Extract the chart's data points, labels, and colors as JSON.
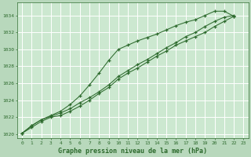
{
  "background_color": "#b8d8bc",
  "plot_bg_color": "#cce8d0",
  "grid_color": "#a0c8a8",
  "line_color": "#2d6a2d",
  "title": "Graphe pression niveau de la mer (hPa)",
  "xlim": [
    -0.5,
    23.5
  ],
  "ylim": [
    1019.5,
    1035.5
  ],
  "yticks": [
    1020,
    1022,
    1024,
    1026,
    1028,
    1030,
    1032,
    1034
  ],
  "xticks": [
    0,
    1,
    2,
    3,
    4,
    5,
    6,
    7,
    8,
    9,
    10,
    11,
    12,
    13,
    14,
    15,
    16,
    17,
    18,
    19,
    20,
    21,
    22,
    23
  ],
  "series1_x": [
    0,
    1,
    2,
    3,
    4,
    5,
    6,
    7,
    8,
    9,
    10,
    11,
    12,
    13,
    14,
    15,
    16,
    17,
    18,
    19,
    20,
    21,
    22
  ],
  "series1": [
    1020.1,
    1020.8,
    1021.5,
    1022.0,
    1022.2,
    1022.7,
    1023.3,
    1024.0,
    1024.8,
    1025.5,
    1026.5,
    1027.2,
    1027.8,
    1028.5,
    1029.2,
    1029.8,
    1030.5,
    1031.0,
    1031.5,
    1032.0,
    1032.7,
    1033.3,
    1033.9
  ],
  "series2_x": [
    0,
    1,
    2,
    3,
    4,
    5,
    6,
    7,
    8,
    9,
    10,
    11,
    12,
    13,
    14,
    15,
    16,
    17,
    18,
    19,
    20,
    21,
    22
  ],
  "series2": [
    1020.1,
    1021.0,
    1021.7,
    1022.2,
    1022.7,
    1023.5,
    1024.5,
    1025.8,
    1027.2,
    1028.7,
    1030.0,
    1030.5,
    1031.0,
    1031.4,
    1031.8,
    1032.3,
    1032.8,
    1033.2,
    1033.5,
    1034.0,
    1034.5,
    1034.5,
    1033.9
  ],
  "series3_x": [
    0,
    1,
    2,
    3,
    4,
    5,
    6,
    7,
    8,
    9,
    10,
    11,
    12,
    13,
    14,
    15,
    16,
    17,
    18,
    19,
    20,
    21,
    22
  ],
  "series3": [
    1020.1,
    1021.0,
    1021.7,
    1022.1,
    1022.5,
    1023.0,
    1023.7,
    1024.3,
    1025.0,
    1025.8,
    1026.8,
    1027.5,
    1028.2,
    1028.8,
    1029.5,
    1030.2,
    1030.8,
    1031.5,
    1032.0,
    1032.7,
    1033.3,
    1033.8,
    1034.0
  ]
}
